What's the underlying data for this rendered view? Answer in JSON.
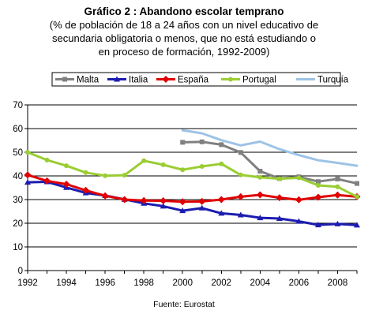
{
  "chart_data": {
    "type": "line",
    "title": "Gráfico 2 : Abandono escolar temprano",
    "subtitle_lines": [
      "(% de población de 18 a 24 años con un nivel educativo de",
      "secundaria obligatoria o menos, que no está estudiando o",
      "en proceso de formación, 1992-2009)"
    ],
    "source": "Fuente: Eurostat",
    "x": [
      1992,
      1993,
      1994,
      1995,
      1996,
      1997,
      1998,
      1999,
      2000,
      2001,
      2002,
      2003,
      2004,
      2005,
      2006,
      2007,
      2008,
      2009
    ],
    "x_tick_labels": [
      "1992",
      "1994",
      "1996",
      "1998",
      "2000",
      "2002",
      "2004",
      "2006",
      "2008"
    ],
    "y_tick_labels": [
      "0",
      "10",
      "20",
      "30",
      "40",
      "50",
      "60",
      "70"
    ],
    "ylim": [
      0,
      70
    ],
    "grid": true,
    "legend_position": "top",
    "series": [
      {
        "name": "Malta",
        "color": "#808080",
        "marker": "square",
        "values": [
          null,
          null,
          null,
          null,
          null,
          null,
          null,
          null,
          54.2,
          54.4,
          53.2,
          49.9,
          42.0,
          38.9,
          39.6,
          37.6,
          38.7,
          36.8
        ]
      },
      {
        "name": "Italia",
        "color": "#1c1cb0",
        "marker": "triangle",
        "values": [
          37.3,
          37.5,
          35.1,
          32.8,
          31.7,
          30.1,
          28.4,
          27.2,
          25.3,
          26.4,
          24.2,
          23.5,
          22.3,
          22.0,
          20.8,
          19.3,
          19.7,
          19.2
        ]
      },
      {
        "name": "España",
        "color": "#e00000",
        "marker": "diamond",
        "values": [
          40.4,
          37.9,
          36.5,
          33.9,
          31.6,
          30.0,
          29.6,
          29.5,
          29.1,
          29.2,
          30.0,
          31.2,
          32.0,
          30.8,
          29.9,
          31.0,
          31.9,
          31.2
        ]
      },
      {
        "name": "Portugal",
        "color": "#9acd32",
        "marker": "circle",
        "values": [
          50.0,
          46.7,
          44.3,
          41.4,
          40.1,
          40.3,
          46.4,
          44.7,
          42.6,
          44.0,
          45.1,
          40.4,
          39.4,
          38.8,
          39.2,
          36.0,
          35.4,
          31.2
        ]
      },
      {
        "name": "Turquía",
        "color": "#9dc3e6",
        "marker": "none",
        "values": [
          null,
          null,
          null,
          null,
          null,
          null,
          null,
          null,
          59.3,
          58.0,
          55.1,
          52.9,
          54.5,
          51.3,
          48.8,
          46.6,
          45.5,
          44.3
        ]
      }
    ]
  }
}
